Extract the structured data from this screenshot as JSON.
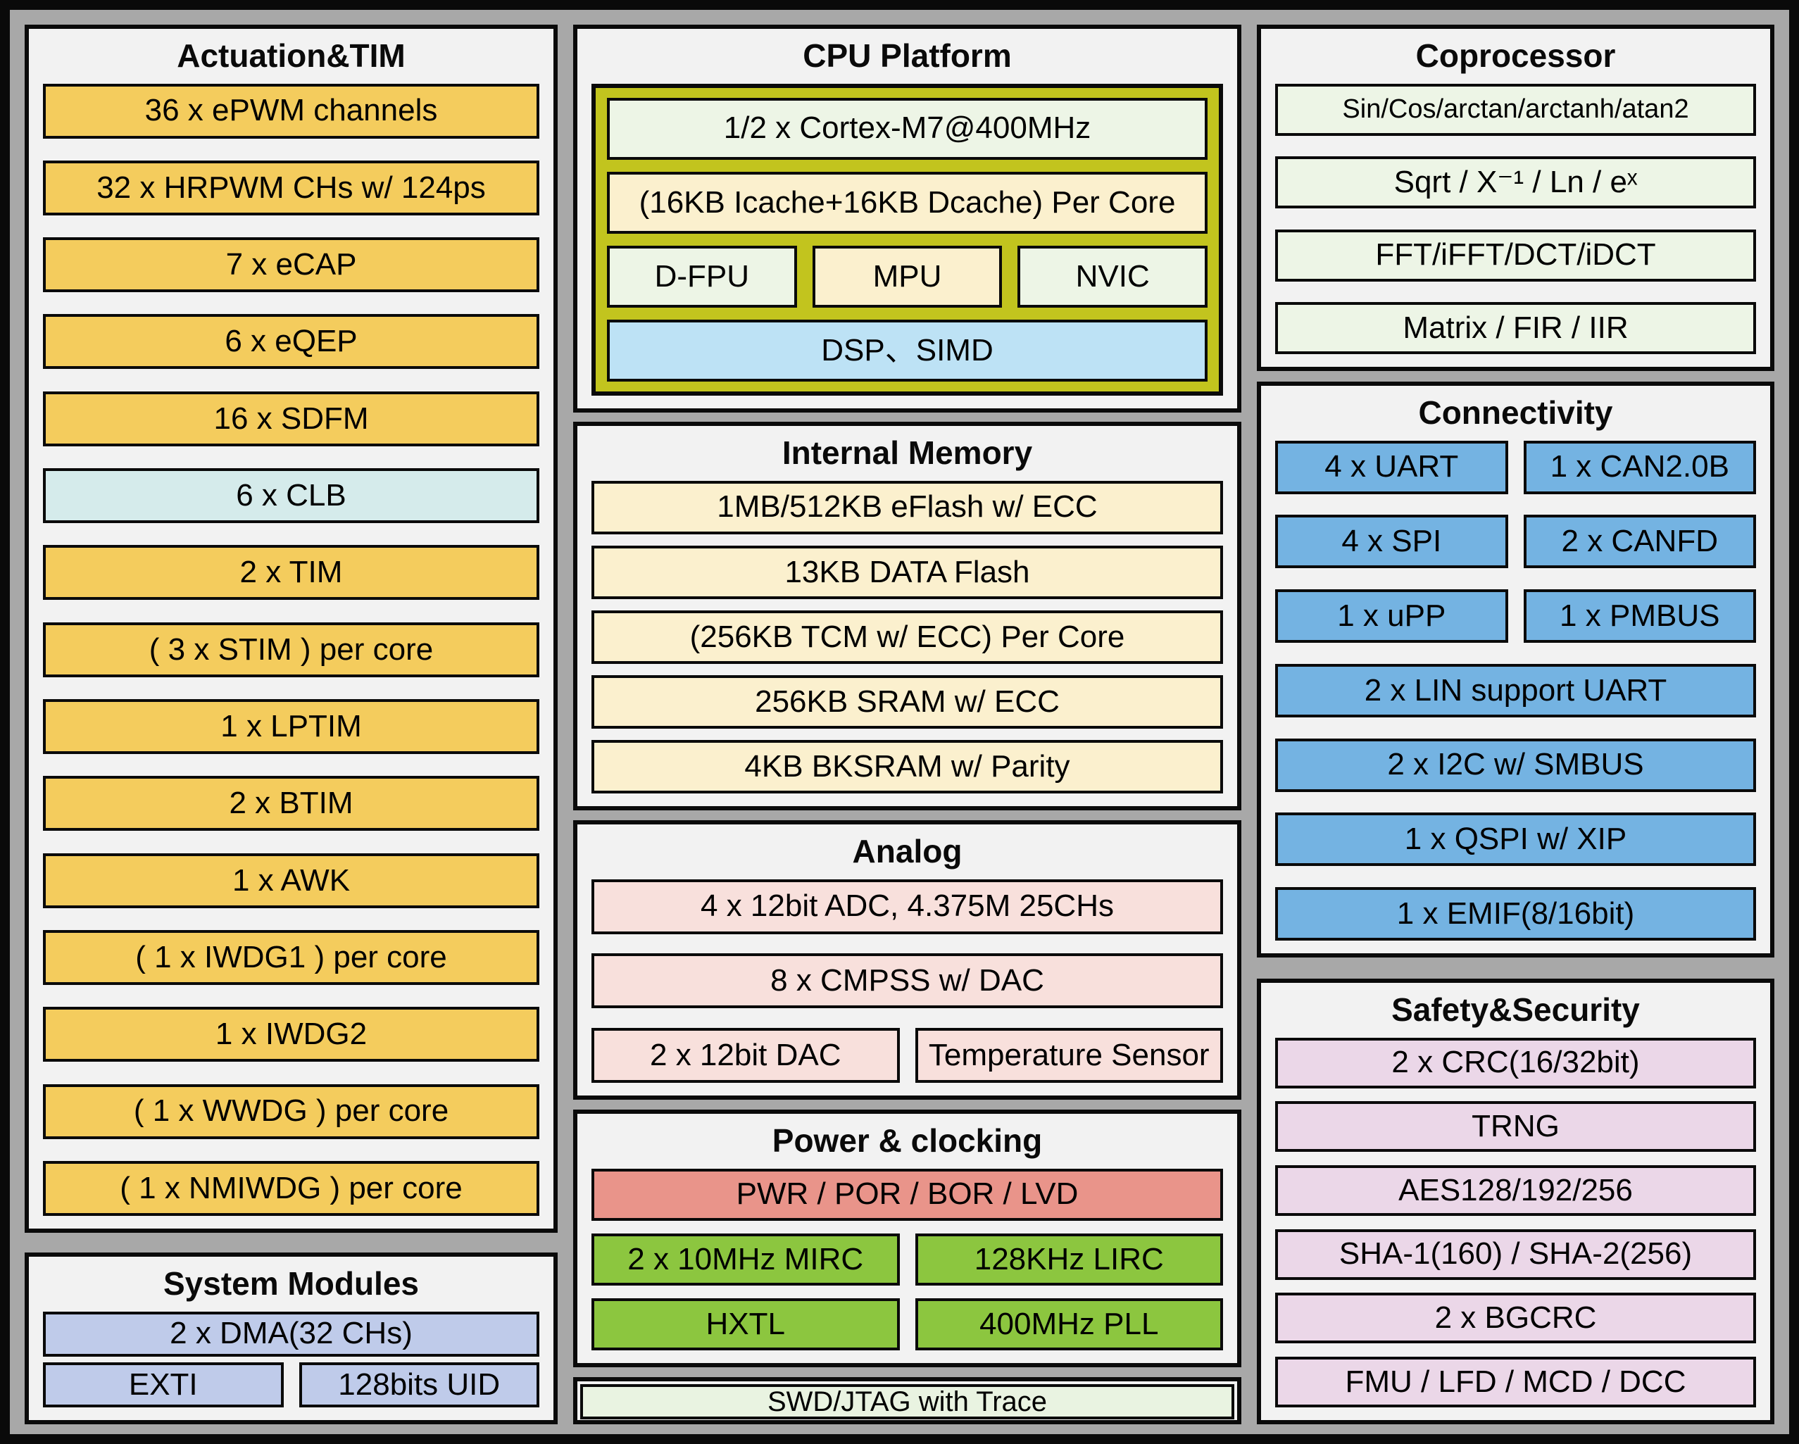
{
  "colors": {
    "yellow": "#F4CC5D",
    "teal": "#D5EBEB",
    "periwinkle": "#BFCBEA",
    "olive": "#C2C41E",
    "pale_green": "#EDF5E6",
    "cream": "#FBF0CE",
    "sky": "#BDE2F5",
    "rose": "#F8E0DC",
    "salmon": "#E9948A",
    "green": "#8CC63F",
    "blue": "#74B3E2",
    "lavender": "#EBD7E8",
    "debug_green": "#E9F3E1",
    "panel_bg": "#F2F2F2",
    "frame_gray": "#A8A8A8",
    "border_black": "#0A0A0A"
  },
  "diagram": {
    "actuation": {
      "title": "Actuation&TIM",
      "items": [
        "36 x ePWM channels",
        "32 x HRPWM CHs w/ 124ps",
        "7 x eCAP",
        "6 x eQEP",
        "16 x SDFM",
        "6 x CLB",
        "2 x TIM",
        "( 3 x STIM ) per core",
        "1 x LPTIM",
        "2 x BTIM",
        "1 x AWK",
        "( 1 x IWDG1 ) per core",
        "1 x IWDG2",
        "( 1 x WWDG ) per core",
        "( 1 x NMIWDG ) per core"
      ]
    },
    "system_modules": {
      "title": "System Modules",
      "dma": "2 x DMA(32 CHs)",
      "exti": "EXTI",
      "uid": "128bits UID"
    },
    "cpu": {
      "title": "CPU Platform",
      "core": "1/2 x Cortex-M7@400MHz",
      "cache": "(16KB Icache+16KB Dcache) Per Core",
      "fpu": "D-FPU",
      "mpu": "MPU",
      "nvic": "NVIC",
      "dsp": "DSP、SIMD"
    },
    "internal_memory": {
      "title": "Internal Memory",
      "items": [
        "1MB/512KB eFlash w/ ECC",
        "13KB DATA Flash",
        "(256KB TCM w/ ECC) Per Core",
        "256KB SRAM w/ ECC",
        "4KB BKSRAM w/ Parity"
      ]
    },
    "analog": {
      "title": "Analog",
      "adc": "4 x 12bit ADC, 4.375M 25CHs",
      "cmpss": "8 x CMPSS w/ DAC",
      "dac": "2 x 12bit DAC",
      "temp": "Temperature Sensor"
    },
    "power": {
      "title": "Power & clocking",
      "pwr": "PWR / POR / BOR / LVD",
      "mirc": "2 x 10MHz MIRC",
      "lirc": "128KHz LIRC",
      "hxtl": "HXTL",
      "pll": "400MHz PLL"
    },
    "debug": {
      "label": "SWD/JTAG with Trace"
    },
    "coprocessor": {
      "title": "Coprocessor",
      "items": [
        "Sin/Cos/arctan/arctanh/atan2",
        "Sqrt / X⁻¹ / Ln / eˣ",
        "FFT/iFFT/DCT/iDCT",
        "Matrix / FIR / IIR"
      ]
    },
    "connectivity": {
      "title": "Connectivity",
      "uart": "4 x UART",
      "can": "1 x CAN2.0B",
      "spi": "4 x SPI",
      "canfd": "2 x CANFD",
      "upp": "1 x uPP",
      "pmbus": "1 x PMBUS",
      "lin": "2 x LIN support UART",
      "i2c": "2 x I2C w/ SMBUS",
      "qspi": "1 x QSPI w/ XIP",
      "emif": "1 x EMIF(8/16bit)"
    },
    "safety": {
      "title": "Safety&Security",
      "items": [
        "2 x CRC(16/32bit)",
        "TRNG",
        "AES128/192/256",
        "SHA-1(160) / SHA-2(256)",
        "2 x BGCRC",
        "FMU / LFD / MCD / DCC"
      ]
    }
  }
}
